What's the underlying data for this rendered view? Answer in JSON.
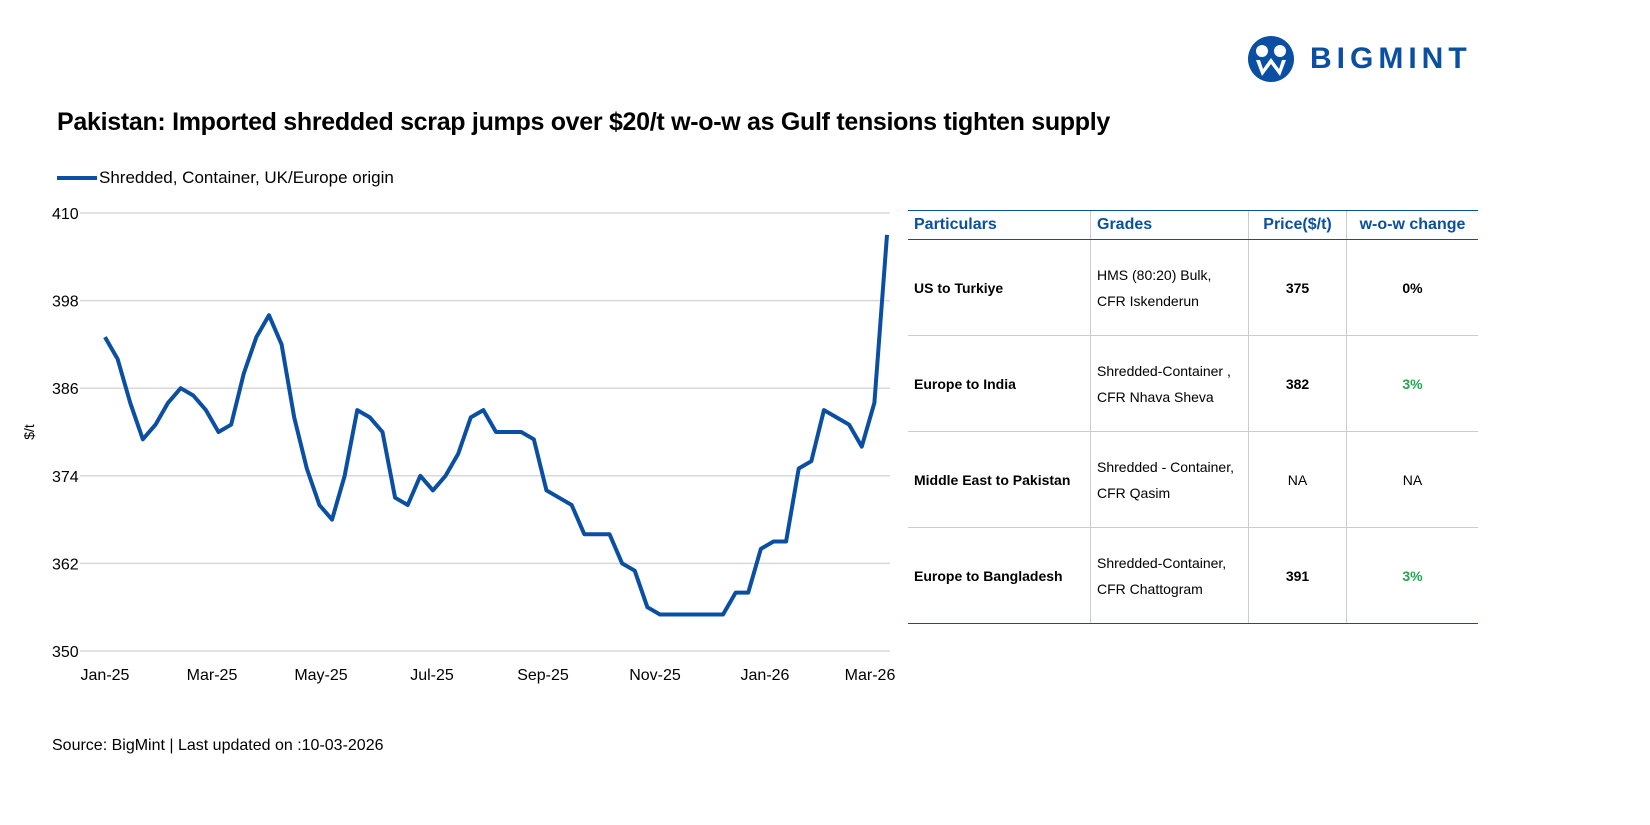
{
  "brand": {
    "name": "BIGMINT",
    "color": "#0b4fa3"
  },
  "title": "Pakistan: Imported shredded scrap jumps over $20/t w-o-w as Gulf tensions tighten supply",
  "source": "Source: BigMint | Last updated on :10-03-2026",
  "chart_data": {
    "type": "line",
    "title": "",
    "xlabel": "",
    "ylabel": "$/t",
    "ylim": [
      350,
      410
    ],
    "yticks": [
      350,
      362,
      374,
      386,
      398,
      410
    ],
    "xtick_labels": [
      "Jan-25",
      "Mar-25",
      "May-25",
      "Jul-25",
      "Sep-25",
      "Nov-25",
      "Jan-26",
      "Mar-26"
    ],
    "grid": true,
    "legend": "top-left",
    "series": [
      {
        "name": "Shredded, Container, UK/Europe origin",
        "color": "#0b4fa3",
        "x": [
          "2024-12-31",
          "2025-01-07",
          "2025-01-14",
          "2025-01-21",
          "2025-01-28",
          "2025-02-04",
          "2025-02-11",
          "2025-02-18",
          "2025-02-25",
          "2025-03-04",
          "2025-03-11",
          "2025-03-18",
          "2025-03-25",
          "2025-04-01",
          "2025-04-08",
          "2025-04-15",
          "2025-04-22",
          "2025-04-29",
          "2025-05-06",
          "2025-05-13",
          "2025-05-20",
          "2025-05-27",
          "2025-06-03",
          "2025-06-10",
          "2025-06-17",
          "2025-06-24",
          "2025-07-01",
          "2025-07-08",
          "2025-07-15",
          "2025-07-22",
          "2025-07-29",
          "2025-08-05",
          "2025-08-12",
          "2025-08-19",
          "2025-08-26",
          "2025-09-02",
          "2025-09-09",
          "2025-09-16",
          "2025-09-23",
          "2025-09-30",
          "2025-10-07",
          "2025-10-14",
          "2025-10-21",
          "2025-10-28",
          "2025-11-04",
          "2025-11-11",
          "2025-11-18",
          "2025-11-25",
          "2025-12-02",
          "2025-12-09",
          "2025-12-16",
          "2025-12-23",
          "2025-12-30",
          "2026-01-06",
          "2026-01-13",
          "2026-01-20",
          "2026-01-27",
          "2026-02-03",
          "2026-02-10",
          "2026-02-17",
          "2026-02-24",
          "2026-03-03",
          "2026-03-10"
        ],
        "values": [
          393,
          390,
          384,
          379,
          381,
          384,
          386,
          385,
          383,
          380,
          381,
          388,
          393,
          396,
          392,
          382,
          375,
          370,
          368,
          374,
          383,
          382,
          380,
          371,
          370,
          374,
          372,
          374,
          377,
          382,
          383,
          380,
          380,
          380,
          379,
          372,
          371,
          370,
          366,
          366,
          366,
          362,
          361,
          356,
          355,
          355,
          355,
          355,
          355,
          355,
          358,
          358,
          364,
          365,
          365,
          375,
          376,
          383,
          382,
          381,
          378,
          384,
          407
        ]
      }
    ]
  },
  "table": {
    "headers": [
      "Particulars",
      "Grades",
      "Price($/t)",
      "w-o-w change"
    ],
    "rows": [
      {
        "particular": "US to Turkiye",
        "grade1": "HMS (80:20) Bulk,",
        "grade2": "CFR Iskenderun",
        "price": "375",
        "change": "0%",
        "positive": false
      },
      {
        "particular": "Europe to India",
        "grade1": "Shredded-Container ,",
        "grade2": "CFR Nhava Sheva",
        "price": "382",
        "change": "3%",
        "positive": true
      },
      {
        "particular": "Middle East to Pakistan",
        "grade1": "Shredded - Container,",
        "grade2": "CFR Qasim",
        "price": "NA",
        "change": "NA",
        "positive": false
      },
      {
        "particular": "Europe to Bangladesh",
        "grade1": "Shredded-Container,",
        "grade2": "CFR Chattogram",
        "price": "391",
        "change": "3%",
        "positive": true
      }
    ]
  }
}
